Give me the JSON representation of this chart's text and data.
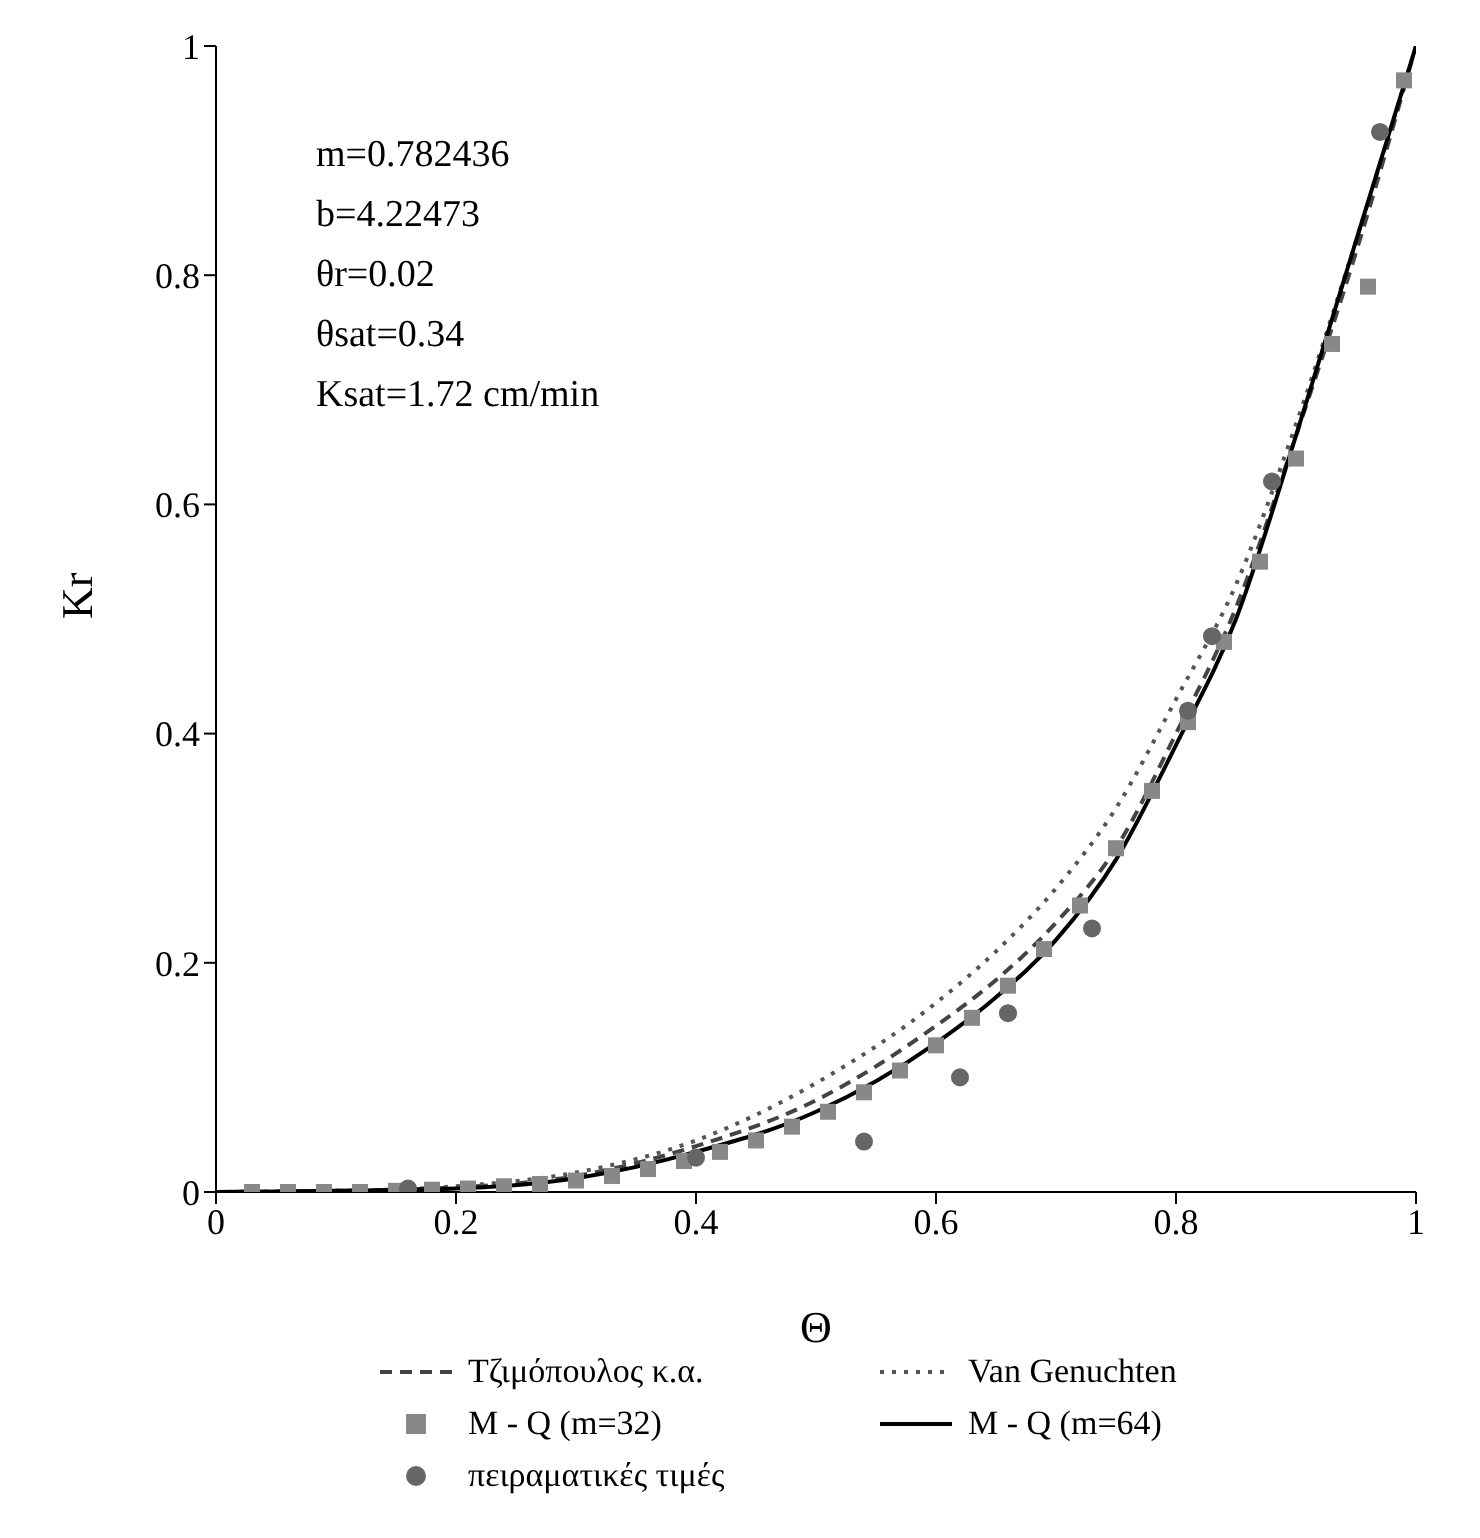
{
  "chart_data": {
    "type": "line",
    "xlabel": "Θ",
    "ylabel": "Kr",
    "xlim": [
      0,
      1
    ],
    "ylim": [
      0,
      1
    ],
    "xticks": [
      0,
      0.2,
      0.4,
      0.6,
      0.8,
      1
    ],
    "yticks": [
      0,
      0.2,
      0.4,
      0.6,
      0.8,
      1
    ],
    "grid": false,
    "legend": "bottom",
    "annotations": [
      "m=0.782436",
      "b=4.22473",
      "θr=0.02",
      "θsat=0.34",
      "Ksat=1.72 cm/min"
    ],
    "series": [
      {
        "name": "Τζιμόπουλος κ.α.",
        "line_style": "dashed",
        "marker": "none",
        "color": "#444444",
        "x": [
          0,
          0.1,
          0.2,
          0.3,
          0.4,
          0.5,
          0.6,
          0.65,
          0.7,
          0.75,
          0.8,
          0.85,
          0.9,
          0.95,
          1
        ],
        "values": [
          0,
          0.001,
          0.004,
          0.014,
          0.04,
          0.08,
          0.145,
          0.185,
          0.235,
          0.3,
          0.4,
          0.51,
          0.66,
          0.82,
          1
        ]
      },
      {
        "name": "Van Genuchten",
        "line_style": "dotted",
        "marker": "none",
        "color": "#555555",
        "x": [
          0,
          0.1,
          0.2,
          0.3,
          0.4,
          0.5,
          0.6,
          0.65,
          0.7,
          0.75,
          0.8,
          0.85,
          0.9,
          0.95,
          1
        ],
        "values": [
          0,
          0.001,
          0.005,
          0.017,
          0.045,
          0.095,
          0.165,
          0.21,
          0.265,
          0.335,
          0.43,
          0.53,
          0.67,
          0.83,
          1
        ]
      },
      {
        "name": "M - Q (m=32)",
        "type": "scatter",
        "marker": "square",
        "color": "#888888",
        "x": [
          0.03,
          0.06,
          0.09,
          0.12,
          0.15,
          0.18,
          0.21,
          0.24,
          0.27,
          0.3,
          0.33,
          0.36,
          0.39,
          0.42,
          0.45,
          0.48,
          0.51,
          0.54,
          0.57,
          0.6,
          0.63,
          0.66,
          0.69,
          0.72,
          0.75,
          0.78,
          0.81,
          0.84,
          0.87,
          0.9,
          0.93,
          0.96,
          0.99
        ],
        "values": [
          0,
          0,
          0,
          0,
          0.001,
          0.002,
          0.003,
          0.005,
          0.007,
          0.01,
          0.014,
          0.02,
          0.027,
          0.035,
          0.045,
          0.057,
          0.07,
          0.087,
          0.106,
          0.128,
          0.152,
          0.18,
          0.212,
          0.25,
          0.3,
          0.35,
          0.41,
          0.48,
          0.55,
          0.64,
          0.74,
          0.79,
          0.97
        ]
      },
      {
        "name": "M - Q (m=64)",
        "line_style": "solid",
        "marker": "none",
        "color": "#000000",
        "x": [
          0,
          0.1,
          0.2,
          0.3,
          0.4,
          0.5,
          0.6,
          0.65,
          0.7,
          0.75,
          0.8,
          0.85,
          0.9,
          0.95,
          1
        ],
        "values": [
          0,
          0.001,
          0.003,
          0.012,
          0.035,
          0.07,
          0.13,
          0.17,
          0.22,
          0.29,
          0.39,
          0.5,
          0.66,
          0.83,
          1
        ]
      },
      {
        "name": "πειραματικές τιμές",
        "type": "scatter",
        "marker": "circle",
        "color": "#666666",
        "x": [
          0.16,
          0.4,
          0.54,
          0.62,
          0.66,
          0.73,
          0.81,
          0.83,
          0.88,
          0.97
        ],
        "values": [
          0.003,
          0.03,
          0.044,
          0.1,
          0.156,
          0.23,
          0.42,
          0.485,
          0.62,
          0.925
        ]
      }
    ]
  }
}
